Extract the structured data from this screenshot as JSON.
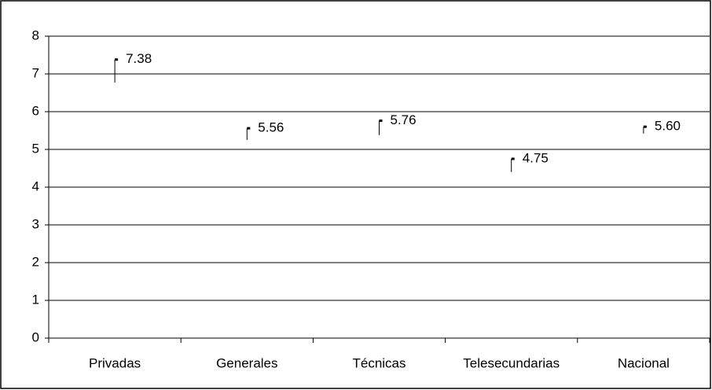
{
  "chart_data": {
    "type": "range",
    "categories": [
      "Privadas",
      "Generales",
      "Técnicas",
      "Telesecundarias",
      "Nacional"
    ],
    "values": [
      7.38,
      5.56,
      5.76,
      4.75,
      5.6
    ],
    "value_labels": [
      "7.38",
      "5.56",
      "5.76",
      "4.75",
      "5.60"
    ],
    "low": [
      6.77,
      5.25,
      5.38,
      4.4,
      5.42
    ],
    "color": "#000000",
    "ylim": [
      0,
      8
    ],
    "yticks": [
      0,
      1,
      2,
      3,
      4,
      5,
      6,
      7,
      8
    ],
    "grid": true
  }
}
